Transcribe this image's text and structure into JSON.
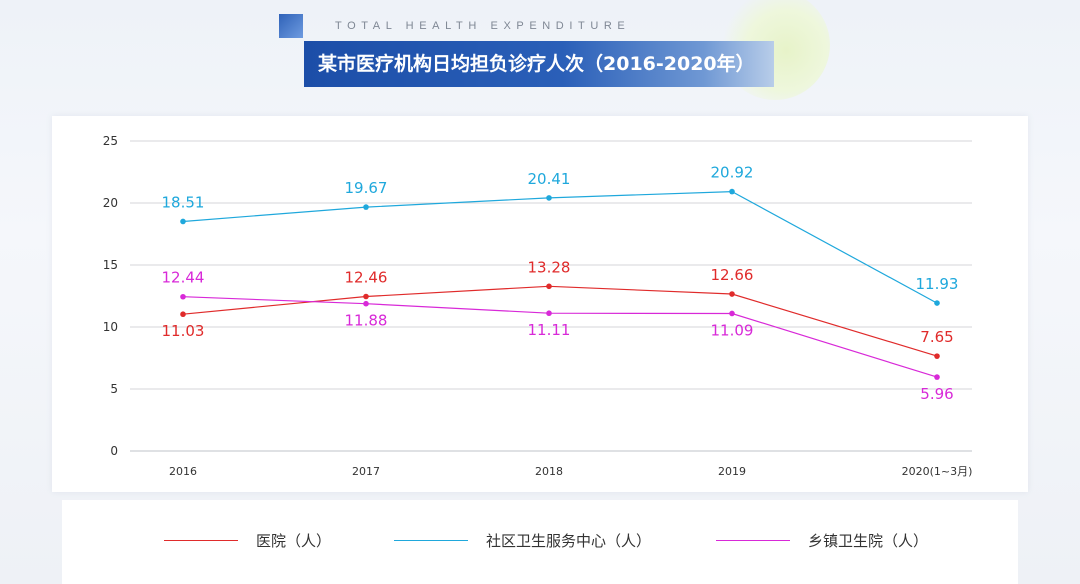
{
  "header": {
    "subtitle": "TOTAL HEALTH EXPENDITURE",
    "title": "某市医疗机构日均担负诊疗人次（2016-2020年）"
  },
  "chart_data": {
    "type": "line",
    "categories": [
      "2016",
      "2017",
      "2018",
      "2019",
      "2020(1~3月)"
    ],
    "yticks": [
      "0",
      "5",
      "10",
      "15",
      "20",
      "25"
    ],
    "ylim": [
      0,
      25
    ],
    "grid": true,
    "legend_position": "bottom",
    "series": [
      {
        "name": "医院（人）",
        "color": "#e02b2b",
        "values": [
          11.03,
          12.46,
          13.28,
          12.66,
          7.65
        ],
        "labels": [
          "11.03",
          "12.46",
          "13.28",
          "12.66",
          "7.65"
        ]
      },
      {
        "name": "社区卫生服务中心（人）",
        "color": "#1fa8dc",
        "values": [
          18.51,
          19.67,
          20.41,
          20.92,
          11.93
        ],
        "labels": [
          "18.51",
          "19.67",
          "20.41",
          "20.92",
          "11.93"
        ]
      },
      {
        "name": "乡镇卫生院（人）",
        "color": "#d829d8",
        "values": [
          12.44,
          11.88,
          11.11,
          11.09,
          5.96
        ],
        "labels": [
          "12.44",
          "11.88",
          "11.11",
          "11.09",
          "5.96"
        ]
      }
    ]
  }
}
